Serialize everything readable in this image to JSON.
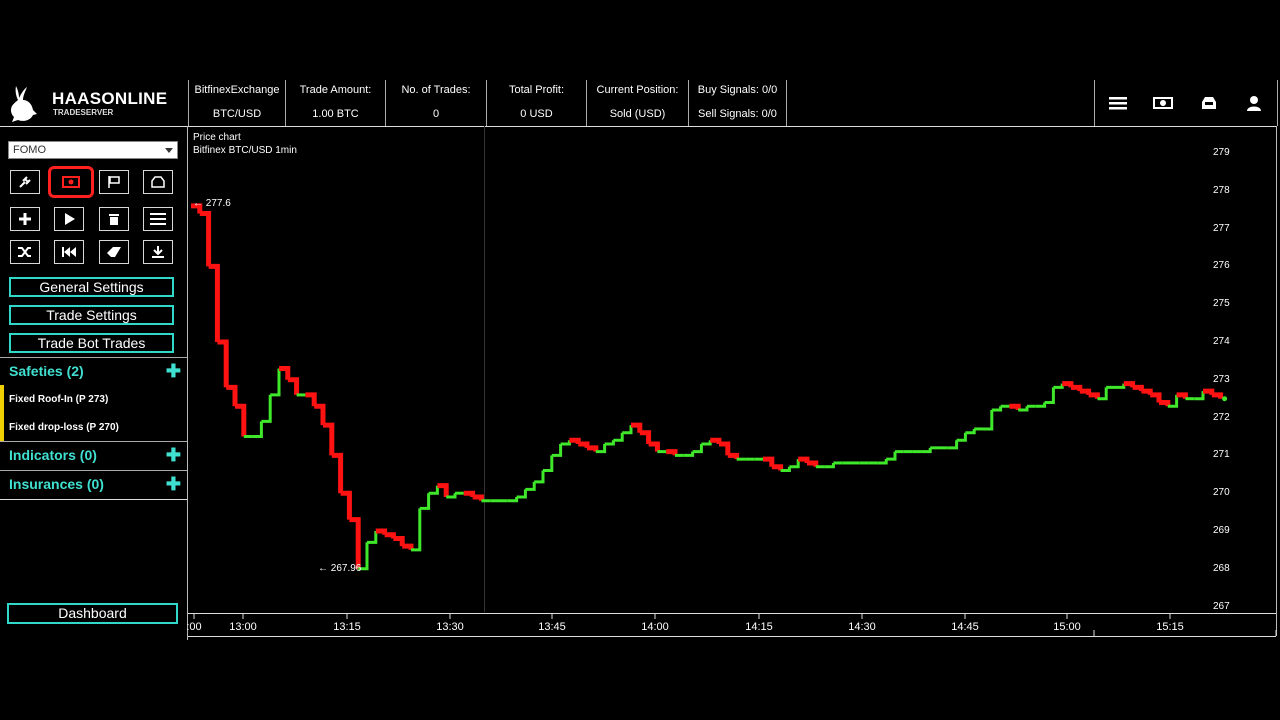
{
  "logo": {
    "brand": "HAASONLINE",
    "sub": "TRADESERVER"
  },
  "stats": [
    {
      "label": "BitfinexExchange",
      "value": "BTC/USD",
      "width": 98
    },
    {
      "label": "Trade Amount:",
      "value": "1.00 BTC",
      "width": 100
    },
    {
      "label": "No. of Trades:",
      "value": "0",
      "width": 101
    },
    {
      "label": "Total Profit:",
      "value": "0 USD",
      "width": 100
    },
    {
      "label": "Current Position:",
      "value": "Sold (USD)",
      "width": 102
    },
    {
      "label": "Buy Signals: 0/0",
      "value": "Sell Signals: 0/0",
      "width": 98
    }
  ],
  "header_icons": [
    "menu-icon",
    "money-icon",
    "inbox-icon",
    "user-icon"
  ],
  "sidebar": {
    "bot_select": "FOMO",
    "settings_buttons": {
      "general": "General Settings",
      "trade": "Trade Settings",
      "history": "Trade Bot Trades"
    },
    "safeties": {
      "title": "Safeties (2)",
      "items": [
        "Fixed Roof-In (P 273)",
        "Fixed drop-loss (P 270)"
      ]
    },
    "indicators": {
      "title": "Indicators (0)"
    },
    "insurances": {
      "title": "Insurances (0)"
    },
    "dashboard": "Dashboard"
  },
  "chart_data": {
    "type": "line",
    "title": "Price chart",
    "subtitle": "Bitfinex BTC/USD 1min",
    "y_ticks": [
      279,
      278,
      277,
      276,
      275,
      274,
      273,
      272,
      271,
      270,
      269,
      268,
      267
    ],
    "ylim": [
      267,
      279
    ],
    "x_ticks": [
      ":00",
      "13:00",
      "13:15",
      "13:30",
      "13:45",
      "14:00",
      "14:15",
      "14:30",
      "14:45",
      "15:00",
      "15:15"
    ],
    "annotations": {
      "max_label": "← 277.6",
      "min_label": "← 267.96"
    },
    "price_series": [
      [
        0,
        277.6
      ],
      [
        1,
        277.4
      ],
      [
        2,
        276.0
      ],
      [
        3,
        274.0
      ],
      [
        4,
        272.8
      ],
      [
        5,
        272.3
      ],
      [
        6,
        271.5
      ],
      [
        7,
        271.5
      ],
      [
        8,
        271.9
      ],
      [
        9,
        272.6
      ],
      [
        10,
        273.3
      ],
      [
        11,
        273.0
      ],
      [
        12,
        272.6
      ],
      [
        13,
        272.6
      ],
      [
        14,
        272.3
      ],
      [
        15,
        271.8
      ],
      [
        16,
        271.0
      ],
      [
        17,
        270.0
      ],
      [
        18,
        269.3
      ],
      [
        19,
        268.0
      ],
      [
        20,
        268.7
      ],
      [
        21,
        269.0
      ],
      [
        22,
        268.9
      ],
      [
        23,
        268.8
      ],
      [
        24,
        268.6
      ],
      [
        25,
        268.5
      ],
      [
        26,
        269.6
      ],
      [
        27,
        270.0
      ],
      [
        28,
        270.2
      ],
      [
        29,
        269.9
      ],
      [
        30,
        270.0
      ],
      [
        31,
        270.0
      ],
      [
        32,
        269.9
      ],
      [
        33,
        269.8
      ],
      [
        34,
        269.8
      ],
      [
        35,
        269.8
      ],
      [
        36,
        269.8
      ],
      [
        37,
        269.9
      ],
      [
        38,
        270.1
      ],
      [
        39,
        270.3
      ],
      [
        40,
        270.6
      ],
      [
        41,
        271.0
      ],
      [
        42,
        271.3
      ],
      [
        43,
        271.4
      ],
      [
        44,
        271.3
      ],
      [
        45,
        271.2
      ],
      [
        46,
        271.1
      ],
      [
        47,
        271.3
      ],
      [
        48,
        271.4
      ],
      [
        49,
        271.6
      ],
      [
        50,
        271.8
      ],
      [
        51,
        271.6
      ],
      [
        52,
        271.3
      ],
      [
        53,
        271.1
      ],
      [
        54,
        271.1
      ],
      [
        55,
        271.0
      ],
      [
        56,
        271.0
      ],
      [
        57,
        271.1
      ],
      [
        58,
        271.3
      ],
      [
        59,
        271.4
      ],
      [
        60,
        271.3
      ],
      [
        61,
        271.0
      ],
      [
        62,
        270.9
      ],
      [
        63,
        270.9
      ],
      [
        64,
        270.9
      ],
      [
        65,
        270.9
      ],
      [
        66,
        270.7
      ],
      [
        67,
        270.6
      ],
      [
        68,
        270.7
      ],
      [
        69,
        270.9
      ],
      [
        70,
        270.8
      ],
      [
        71,
        270.7
      ],
      [
        72,
        270.7
      ],
      [
        73,
        270.8
      ],
      [
        74,
        270.8
      ],
      [
        75,
        270.8
      ],
      [
        76,
        270.8
      ],
      [
        77,
        270.8
      ],
      [
        78,
        270.8
      ],
      [
        79,
        270.9
      ],
      [
        80,
        271.1
      ],
      [
        81,
        271.1
      ],
      [
        82,
        271.1
      ],
      [
        83,
        271.1
      ],
      [
        84,
        271.2
      ],
      [
        85,
        271.2
      ],
      [
        86,
        271.2
      ],
      [
        87,
        271.4
      ],
      [
        88,
        271.6
      ],
      [
        89,
        271.7
      ],
      [
        90,
        271.7
      ],
      [
        91,
        272.2
      ],
      [
        92,
        272.3
      ],
      [
        93,
        272.3
      ],
      [
        94,
        272.2
      ],
      [
        95,
        272.3
      ],
      [
        96,
        272.3
      ],
      [
        97,
        272.4
      ],
      [
        98,
        272.8
      ],
      [
        99,
        272.9
      ],
      [
        100,
        272.8
      ],
      [
        101,
        272.7
      ],
      [
        102,
        272.6
      ],
      [
        103,
        272.5
      ],
      [
        104,
        272.8
      ],
      [
        105,
        272.8
      ],
      [
        106,
        272.9
      ],
      [
        107,
        272.8
      ],
      [
        108,
        272.7
      ],
      [
        109,
        272.6
      ],
      [
        110,
        272.4
      ],
      [
        111,
        272.3
      ],
      [
        112,
        272.6
      ],
      [
        113,
        272.5
      ],
      [
        114,
        272.5
      ],
      [
        115,
        272.7
      ],
      [
        116,
        272.6
      ],
      [
        117,
        272.5
      ]
    ]
  }
}
